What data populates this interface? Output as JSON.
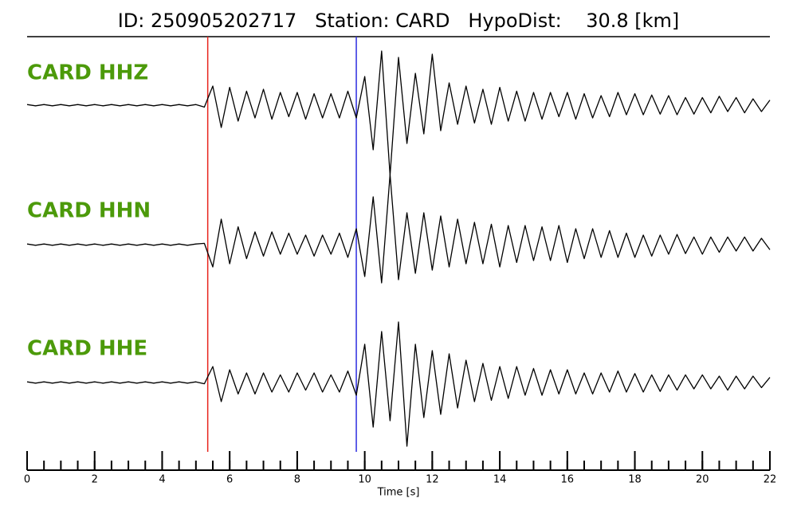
{
  "chart_data": {
    "type": "seismogram",
    "title": "ID: 250905202717   Station: CARD   HypoDist:    30.8 [km]",
    "xlabel": "Time [s]",
    "xlim": [
      0,
      22
    ],
    "xticks": [
      0,
      2,
      4,
      6,
      8,
      10,
      12,
      14,
      16,
      18,
      20,
      22
    ],
    "xminorticks": [
      0,
      0.5,
      1,
      1.5,
      2,
      2.5,
      3,
      3.5,
      4,
      4.5,
      5,
      5.5,
      6,
      6.5,
      7,
      7.5,
      8,
      8.5,
      9,
      9.5,
      10,
      10.5,
      11,
      11.5,
      12,
      12.5,
      13,
      13.5,
      14,
      14.5,
      15,
      15.5,
      16,
      16.5,
      17,
      17.5,
      18,
      18.5,
      19,
      19.5,
      20,
      20.5,
      21,
      21.5,
      22
    ],
    "vlines": [
      {
        "x": 5.35,
        "color": "#e8241c"
      },
      {
        "x": 9.75,
        "color": "#2c2ce0"
      }
    ],
    "x": [
      0,
      0.25,
      0.5,
      0.75,
      1,
      1.25,
      1.5,
      1.75,
      2,
      2.25,
      2.5,
      2.75,
      3,
      3.25,
      3.5,
      3.75,
      4,
      4.25,
      4.5,
      4.75,
      5,
      5.25,
      5.5,
      5.75,
      6,
      6.25,
      6.5,
      6.75,
      7,
      7.25,
      7.5,
      7.75,
      8,
      8.25,
      8.5,
      8.75,
      9,
      9.25,
      9.5,
      9.75,
      10,
      10.25,
      10.5,
      10.75,
      11,
      11.25,
      11.5,
      11.75,
      12,
      12.25,
      12.5,
      12.75,
      13,
      13.25,
      13.5,
      13.75,
      14,
      14.25,
      14.5,
      14.75,
      15,
      15.25,
      15.5,
      15.75,
      16,
      16.25,
      16.5,
      16.75,
      17,
      17.25,
      17.5,
      17.75,
      18,
      18.25,
      18.5,
      18.75,
      19,
      19.25,
      19.5,
      19.75,
      20,
      20.25,
      20.5,
      20.75,
      21,
      21.25,
      21.5,
      21.75,
      22
    ],
    "series": [
      {
        "name": "CARD HHZ",
        "color": "#000000",
        "label_color": "#4c9a0a",
        "values": [
          0.01,
          -0.01,
          0.01,
          -0.01,
          0.01,
          -0.01,
          0.01,
          -0.01,
          0.01,
          -0.01,
          0.01,
          -0.01,
          0.01,
          -0.01,
          0.01,
          -0.01,
          0.01,
          -0.01,
          0.01,
          -0.01,
          0.01,
          -0.03,
          0.3,
          -0.35,
          0.28,
          -0.25,
          0.22,
          -0.2,
          0.25,
          -0.22,
          0.2,
          -0.18,
          0.2,
          -0.22,
          0.18,
          -0.2,
          0.18,
          -0.2,
          0.22,
          -0.2,
          0.45,
          -0.7,
          0.85,
          -1.1,
          0.75,
          -0.6,
          0.5,
          -0.45,
          0.8,
          -0.4,
          0.35,
          -0.3,
          0.3,
          -0.28,
          0.25,
          -0.3,
          0.28,
          -0.25,
          0.22,
          -0.25,
          0.2,
          -0.22,
          0.2,
          -0.18,
          0.2,
          -0.22,
          0.18,
          -0.2,
          0.15,
          -0.18,
          0.2,
          -0.15,
          0.18,
          -0.15,
          0.16,
          -0.14,
          0.15,
          -0.15,
          0.12,
          -0.14,
          0.12,
          -0.12,
          0.14,
          -0.1,
          0.12,
          -0.12,
          0.1,
          -0.1,
          0.08
        ]
      },
      {
        "name": "CARD HHN",
        "color": "#000000",
        "label_color": "#4c9a0a",
        "values": [
          0.01,
          -0.01,
          0.01,
          -0.01,
          0.01,
          -0.01,
          0.01,
          -0.01,
          0.01,
          -0.01,
          0.01,
          -0.01,
          0.01,
          -0.01,
          0.01,
          -0.01,
          0.01,
          -0.01,
          0.01,
          -0.01,
          0.01,
          0.02,
          -0.35,
          0.4,
          -0.3,
          0.28,
          -0.22,
          0.2,
          -0.18,
          0.2,
          -0.15,
          0.18,
          -0.15,
          0.15,
          -0.18,
          0.15,
          -0.15,
          0.18,
          -0.2,
          0.25,
          -0.5,
          0.75,
          -0.6,
          1.1,
          -0.55,
          0.5,
          -0.45,
          0.5,
          -0.4,
          0.45,
          -0.35,
          0.4,
          -0.3,
          0.35,
          -0.3,
          0.32,
          -0.35,
          0.3,
          -0.28,
          0.3,
          -0.25,
          0.28,
          -0.25,
          0.3,
          -0.28,
          0.25,
          -0.22,
          0.25,
          -0.2,
          0.22,
          -0.2,
          0.18,
          -0.2,
          0.15,
          -0.18,
          0.15,
          -0.15,
          0.16,
          -0.14,
          0.12,
          -0.15,
          0.12,
          -0.12,
          0.12,
          -0.1,
          0.12,
          -0.1,
          0.1,
          -0.08
        ]
      },
      {
        "name": "CARD HHE",
        "color": "#000000",
        "label_color": "#4c9a0a",
        "values": [
          0.01,
          -0.01,
          0.01,
          -0.01,
          0.01,
          -0.01,
          0.01,
          -0.01,
          0.01,
          -0.01,
          0.01,
          -0.01,
          0.01,
          -0.01,
          0.01,
          -0.01,
          0.01,
          -0.01,
          0.01,
          -0.01,
          0.01,
          -0.02,
          0.25,
          -0.3,
          0.2,
          -0.18,
          0.15,
          -0.18,
          0.15,
          -0.15,
          0.12,
          -0.15,
          0.15,
          -0.12,
          0.15,
          -0.15,
          0.12,
          -0.15,
          0.18,
          -0.2,
          0.6,
          -0.7,
          0.8,
          -0.6,
          0.95,
          -1.0,
          0.6,
          -0.55,
          0.5,
          -0.5,
          0.45,
          -0.4,
          0.35,
          -0.3,
          0.3,
          -0.28,
          0.25,
          -0.25,
          0.25,
          -0.2,
          0.22,
          -0.2,
          0.2,
          -0.18,
          0.2,
          -0.18,
          0.15,
          -0.18,
          0.15,
          -0.15,
          0.18,
          -0.15,
          0.14,
          -0.15,
          0.12,
          -0.14,
          0.12,
          -0.12,
          0.12,
          -0.1,
          0.12,
          -0.1,
          0.1,
          -0.12,
          0.1,
          -0.1,
          0.1,
          -0.08,
          0.08
        ]
      }
    ]
  }
}
